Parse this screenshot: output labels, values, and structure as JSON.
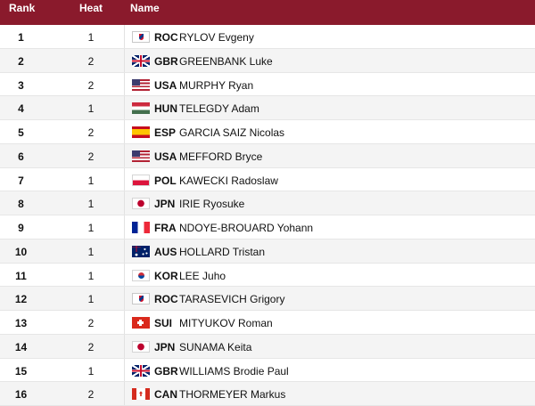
{
  "header": {
    "rank": "Rank",
    "heat": "Heat",
    "name": "Name"
  },
  "rows": [
    {
      "rank": "1",
      "heat": "1",
      "country": "ROC",
      "flag": "roc",
      "athlete": "RYLOV Evgeny"
    },
    {
      "rank": "2",
      "heat": "2",
      "country": "GBR",
      "flag": "gbr",
      "athlete": "GREENBANK Luke"
    },
    {
      "rank": "3",
      "heat": "2",
      "country": "USA",
      "flag": "usa",
      "athlete": "MURPHY Ryan"
    },
    {
      "rank": "4",
      "heat": "1",
      "country": "HUN",
      "flag": "hun",
      "athlete": "TELEGDY Adam"
    },
    {
      "rank": "5",
      "heat": "2",
      "country": "ESP",
      "flag": "esp",
      "athlete": "GARCIA SAIZ Nicolas"
    },
    {
      "rank": "6",
      "heat": "2",
      "country": "USA",
      "flag": "usa",
      "athlete": "MEFFORD Bryce"
    },
    {
      "rank": "7",
      "heat": "1",
      "country": "POL",
      "flag": "pol",
      "athlete": "KAWECKI Radoslaw"
    },
    {
      "rank": "8",
      "heat": "1",
      "country": "JPN",
      "flag": "jpn",
      "athlete": "IRIE Ryosuke"
    },
    {
      "rank": "9",
      "heat": "1",
      "country": "FRA",
      "flag": "fra",
      "athlete": "NDOYE-BROUARD Yohann"
    },
    {
      "rank": "10",
      "heat": "1",
      "country": "AUS",
      "flag": "aus",
      "athlete": "HOLLARD Tristan"
    },
    {
      "rank": "11",
      "heat": "1",
      "country": "KOR",
      "flag": "kor",
      "athlete": "LEE Juho"
    },
    {
      "rank": "12",
      "heat": "1",
      "country": "ROC",
      "flag": "roc",
      "athlete": "TARASEVICH Grigory"
    },
    {
      "rank": "13",
      "heat": "2",
      "country": "SUI",
      "flag": "sui",
      "athlete": "MITYUKOV Roman"
    },
    {
      "rank": "14",
      "heat": "2",
      "country": "JPN",
      "flag": "jpn",
      "athlete": "SUNAMA Keita"
    },
    {
      "rank": "15",
      "heat": "1",
      "country": "GBR",
      "flag": "gbr",
      "athlete": "WILLIAMS Brodie Paul"
    },
    {
      "rank": "16",
      "heat": "2",
      "country": "CAN",
      "flag": "can",
      "athlete": "THORMEYER Markus"
    }
  ]
}
